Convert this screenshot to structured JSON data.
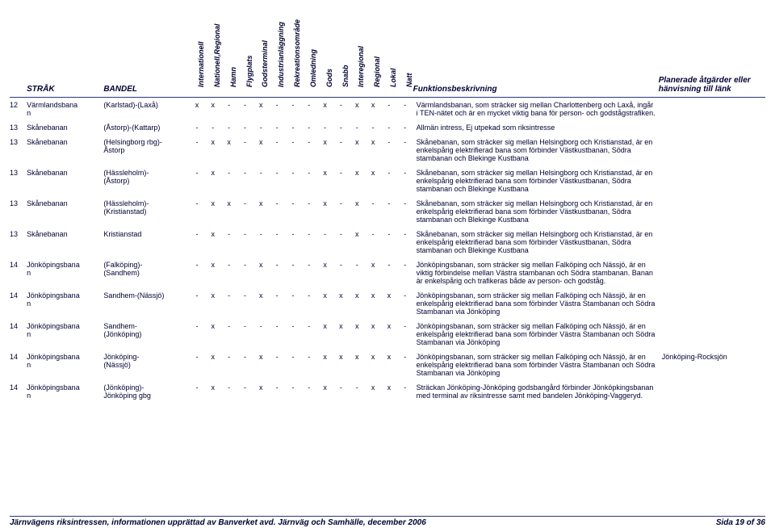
{
  "header": {
    "strak": "STRÅK",
    "bandel": "BANDEL",
    "cols": [
      "Internationell",
      "Nationell,Regional",
      "Hamn",
      "Flygplats",
      "Godsterminal",
      "Industrianläggning",
      "Rekreationsområde",
      "Omledning",
      "Gods",
      "Snabb",
      "Interegional",
      "Regional",
      "Lokal",
      "Natt"
    ],
    "funk": "Funktionsbeskrivning",
    "plan": "Planerade åtgärder eller\nhänvisning till länk"
  },
  "rows": [
    {
      "n": "12",
      "nm": "Värmlandsbana\nn",
      "bd": "(Karlstad)-(Laxå)",
      "m": [
        "x",
        "x",
        "-",
        "-",
        "x",
        "-",
        "-",
        "-",
        "x",
        "-",
        "x",
        "x",
        "-",
        "-"
      ],
      "d": "Värmlandsbanan, som sträcker sig mellan Charlottenberg och Laxå, ingår i TEN-nätet och är en mycket viktig bana för person- och godstågstrafiken.",
      "p": ""
    },
    {
      "n": "13",
      "nm": "Skånebanan",
      "bd": "(Åstorp)-(Kattarp)",
      "m": [
        "-",
        "-",
        "-",
        "-",
        "-",
        "-",
        "-",
        "-",
        "-",
        "-",
        "-",
        "-",
        "-",
        "-"
      ],
      "d": "Allmän intress, Ej utpekad som riksintresse",
      "p": ""
    },
    {
      "n": "13",
      "nm": "Skånebanan",
      "bd": "(Helsingborg rbg)-\nÅstorp",
      "m": [
        "-",
        "x",
        "x",
        "-",
        "x",
        "-",
        "-",
        "-",
        "x",
        "-",
        "x",
        "x",
        "-",
        "-"
      ],
      "d": "Skånebanan, som sträcker sig mellan Helsingborg och Kristianstad, är en enkelspårig elektrifierad bana som förbinder Västkustbanan, Södra stambanan och Blekinge Kustbana",
      "p": ""
    },
    {
      "n": "13",
      "nm": "Skånebanan",
      "bd": "(Hässleholm)-\n(Åstorp)",
      "m": [
        "-",
        "x",
        "-",
        "-",
        "-",
        "-",
        "-",
        "-",
        "x",
        "-",
        "x",
        "x",
        "-",
        "-"
      ],
      "d": "Skånebanan, som sträcker sig mellan Helsingborg och Kristianstad, är en enkelspårig elektrifierad bana som förbinder Västkustbanan, Södra stambanan och Blekinge Kustbana",
      "p": ""
    },
    {
      "n": "13",
      "nm": "Skånebanan",
      "bd": "(Hässleholm)-\n(Kristianstad)",
      "m": [
        "-",
        "x",
        "x",
        "-",
        "x",
        "-",
        "-",
        "-",
        "x",
        "-",
        "x",
        "-",
        "-",
        "-"
      ],
      "d": "Skånebanan, som sträcker sig mellan Helsingborg och Kristianstad, är en enkelspårig elektrifierad bana som förbinder Västkustbanan, Södra stambanan och Blekinge Kustbana",
      "p": ""
    },
    {
      "n": "13",
      "nm": "Skånebanan",
      "bd": "Kristianstad",
      "m": [
        "-",
        "x",
        "-",
        "-",
        "-",
        "-",
        "-",
        "-",
        "-",
        "-",
        "x",
        "-",
        "-",
        "-"
      ],
      "d": "Skånebanan, som sträcker sig mellan Helsingborg och Kristianstad, är en enkelspårig elektrifierad bana som förbinder Västkustbanan, Södra stambanan och Blekinge Kustbana",
      "p": ""
    },
    {
      "n": "14",
      "nm": "Jönköpingsbana\nn",
      "bd": "(Falköping)-\n(Sandhem)",
      "m": [
        "-",
        "x",
        "-",
        "-",
        "x",
        "-",
        "-",
        "-",
        "x",
        "-",
        "-",
        "x",
        "-",
        "-"
      ],
      "d": "Jönköpingsbanan, som sträcker sig mellan Falköping och Nässjö, är en viktig förbindelse mellan Västra stambanan och Södra stambanan.  Banan är enkelspårig och trafikeras både av person- och godståg.",
      "p": ""
    },
    {
      "n": "14",
      "nm": "Jönköpingsbana\nn",
      "bd": "Sandhem-(Nässjö)",
      "m": [
        "-",
        "x",
        "-",
        "-",
        "x",
        "-",
        "-",
        "-",
        "x",
        "x",
        "x",
        "x",
        "x",
        "-"
      ],
      "d": "Jönköpingsbanan, som sträcker sig mellan Falköping och Nässjö, är en enkelspårig elektrifierad bana som förbinder Västra Stambanan och Södra Stambanan via Jönköping",
      "p": ""
    },
    {
      "n": "14",
      "nm": "Jönköpingsbana\nn",
      "bd": "Sandhem-\n(Jönköping)",
      "m": [
        "-",
        "x",
        "-",
        "-",
        "-",
        "-",
        "-",
        "-",
        "x",
        "x",
        "x",
        "x",
        "x",
        "-"
      ],
      "d": "Jönköpingsbanan, som sträcker sig mellan Falköping och Nässjö, är en enkelspårig elektrifierad bana som förbinder Västra Stambanan och Södra Stambanan via Jönköping",
      "p": ""
    },
    {
      "n": "14",
      "nm": "Jönköpingsbana\nn",
      "bd": "Jönköping-\n(Nässjö)",
      "m": [
        "-",
        "x",
        "-",
        "-",
        "x",
        "-",
        "-",
        "-",
        "x",
        "x",
        "x",
        "x",
        "x",
        "-"
      ],
      "d": "Jönköpingsbanan, som sträcker sig mellan Falköping och Nässjö, är en enkelspårig elektrifierad bana som förbinder Västra Stambanan och Södra Stambanan via Jönköping",
      "p": "Jönköping-Rocksjön"
    },
    {
      "n": "14",
      "nm": "Jönköpingsbana\nn",
      "bd": "(Jönköping)-\nJönköping gbg",
      "m": [
        "-",
        "x",
        "-",
        "-",
        "x",
        "-",
        "-",
        "-",
        "x",
        "-",
        "-",
        "x",
        "x",
        "-"
      ],
      "d": "Sträckan Jönköping-Jönköping godsbangård förbinder Jönköpkingsbanan med terminal av riksintresse samt med bandelen Jönköping-Vaggeryd.",
      "p": ""
    }
  ],
  "footer": {
    "left": "Järnvägens riksintressen, informationen upprättad av Banverket avd. Järnväg och Samhälle, december 2006",
    "right": "Sida 19 of 36"
  }
}
